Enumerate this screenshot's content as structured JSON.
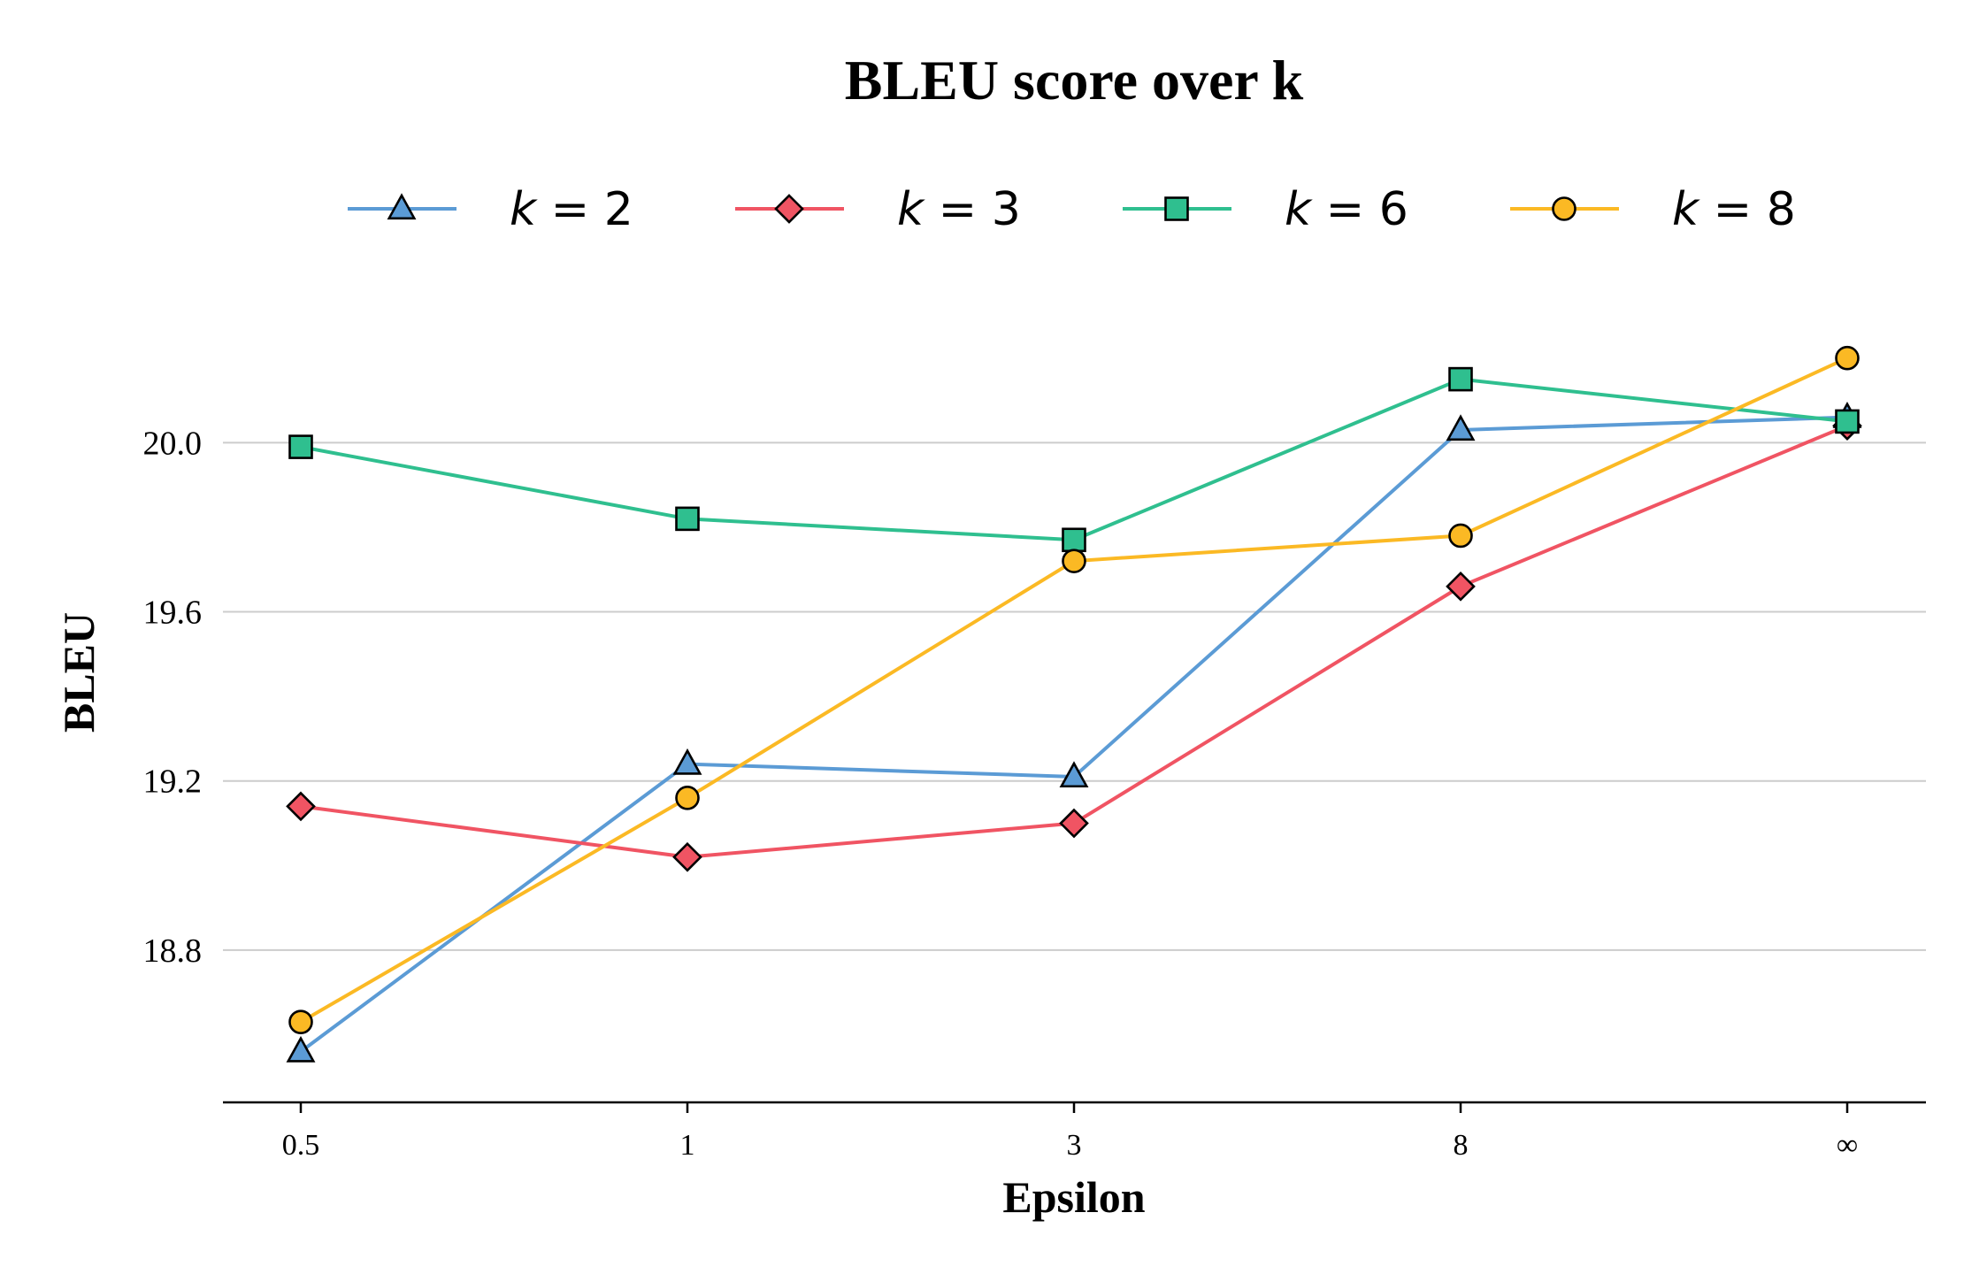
{
  "chart_data": {
    "type": "line",
    "title": "BLEU score over k",
    "xlabel": "Epsilon",
    "ylabel": "BLEU",
    "categories": [
      "0.5",
      "1",
      "3",
      "8",
      "∞"
    ],
    "ylim": [
      18.44,
      20.44
    ],
    "yticks": [
      18.8,
      19.2,
      19.6,
      20.0
    ],
    "ytick_labels": [
      "18.8",
      "19.2",
      "19.6",
      "20.0"
    ],
    "grid": "horizontal",
    "legend_position": "top",
    "series": [
      {
        "name": "k = 2",
        "name_var": "k",
        "name_val": "2",
        "color": "#5b9bd5",
        "marker": "triangle",
        "values": [
          18.56,
          19.24,
          19.21,
          20.03,
          20.06
        ]
      },
      {
        "name": "k = 3",
        "name_var": "k",
        "name_val": "3",
        "color": "#f05463",
        "marker": "diamond",
        "values": [
          19.14,
          19.02,
          19.1,
          19.66,
          20.04
        ]
      },
      {
        "name": "k = 6",
        "name_var": "k",
        "name_val": "6",
        "color": "#2fbf8f",
        "marker": "square",
        "values": [
          19.99,
          19.82,
          19.77,
          20.15,
          20.05
        ]
      },
      {
        "name": "k = 8",
        "name_var": "k",
        "name_val": "8",
        "color": "#fbb924",
        "marker": "circle",
        "values": [
          18.63,
          19.16,
          19.72,
          19.78,
          20.2
        ]
      }
    ]
  }
}
